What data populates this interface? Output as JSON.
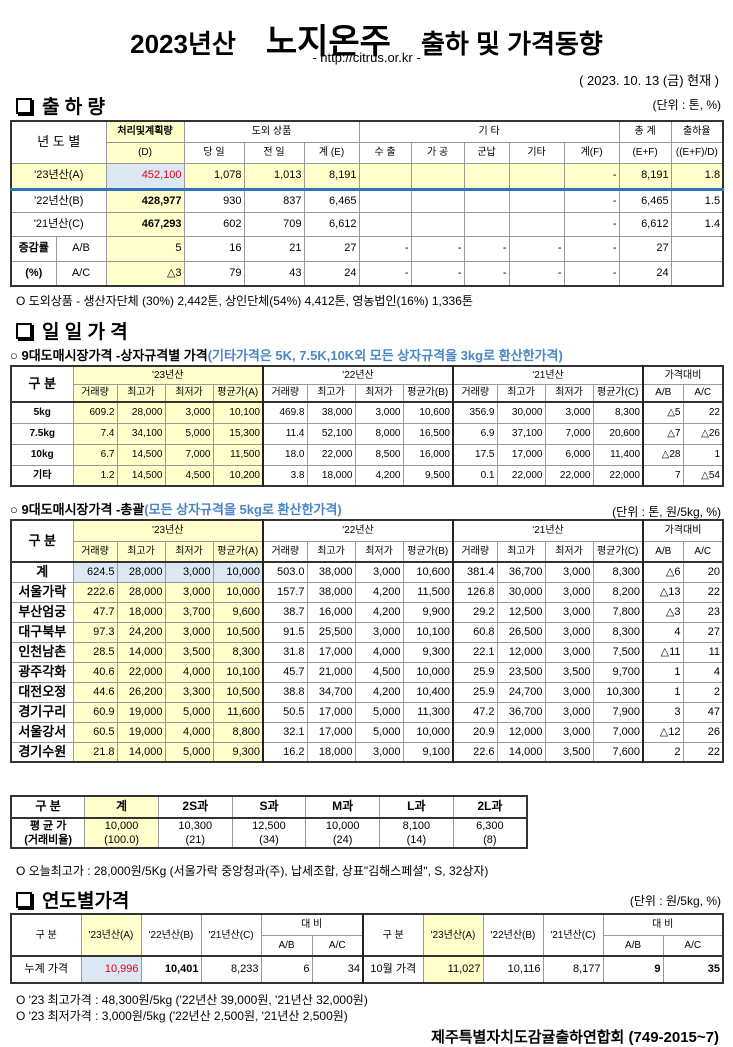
{
  "header": {
    "year": "2023년산",
    "product": "노지온주",
    "rest": "출하 및 가격동향",
    "url": "- http://citrus.or.kr -",
    "date": "( 2023.  10.  13 (금) 현재 )"
  },
  "shipment": {
    "title": "출 하 량",
    "unit": "(단위 : 톤, %)",
    "head": {
      "year": "년 도 별",
      "d1": "처리및계획량",
      "d2": "(D)",
      "outside": "도외 상품",
      "day": "당 일",
      "prev": "전 일",
      "sumE": "계 (E)",
      "other": "기          타",
      "export": "수 출",
      "process": "가 공",
      "military": "군납",
      "etc": "기타",
      "sumF": "계(F)",
      "total1": "총 계",
      "total2": "(E+F)",
      "rate1": "출하율",
      "rate2": "((E+F)/D)"
    },
    "rows": [
      [
        "'23년산(A)",
        "452,100",
        "1,078",
        "1,013",
        "8,191",
        "",
        "",
        "",
        "",
        "-",
        "8,191",
        "1.8"
      ],
      [
        "'22년산(B)",
        "428,977",
        "930",
        "837",
        "6,465",
        "",
        "",
        "",
        "",
        "-",
        "6,465",
        "1.5"
      ],
      [
        "'21년산(C)",
        "467,293",
        "602",
        "709",
        "6,612",
        "",
        "",
        "",
        "",
        "-",
        "6,612",
        "1.4"
      ]
    ],
    "change_label1": "증감률",
    "change_label2": "(%)",
    "change_rows": [
      [
        "A/B",
        "5",
        "16",
        "21",
        "27",
        "-",
        "-",
        "-",
        "-",
        "-",
        "27",
        ""
      ],
      [
        "A/C",
        "△3",
        "79",
        "43",
        "24",
        "-",
        "-",
        "-",
        "-",
        "-",
        "24",
        ""
      ]
    ],
    "note": "O 도외상품 - 생산자단체 (30%) 2,442톤, 상인단체(54%) 4,412톤, 영농법인(16%) 1,336톤"
  },
  "daily": {
    "title": "일 일 가 격",
    "box_sub": "○ 9대도매시장가격 -상자규격별 가격",
    "box_sub_note": "(기타가격은 5K, 7.5K,10K외 모든 상자규격을 3kg로 환산한가격)",
    "head": {
      "label": "구  분",
      "y23": "'23년산",
      "y22": "'22년산",
      "y21": "'21년산",
      "cmp": "가격대비",
      "vol": "거래량",
      "max": "최고가",
      "min": "최저가",
      "avgA": "평균가(A)",
      "avgB": "평균가(B)",
      "avgC": "평균가(C)",
      "ab": "A/B",
      "ac": "A/C"
    },
    "box_rows": [
      [
        "5kg",
        "609.2",
        "28,000",
        "3,000",
        "10,100",
        "469.8",
        "38,000",
        "3,000",
        "10,600",
        "356.9",
        "30,000",
        "3,000",
        "8,300",
        "△5",
        "22"
      ],
      [
        "7.5kg",
        "7.4",
        "34,100",
        "5,000",
        "15,300",
        "11.4",
        "52,100",
        "8,000",
        "16,500",
        "6.9",
        "37,100",
        "7,000",
        "20,600",
        "△7",
        "△26"
      ],
      [
        "10kg",
        "6.7",
        "14,500",
        "7,000",
        "11,500",
        "18.0",
        "22,000",
        "8,500",
        "16,000",
        "17.5",
        "17,000",
        "6,000",
        "11,400",
        "△28",
        "1"
      ],
      [
        "기타",
        "1.2",
        "14,500",
        "4,500",
        "10,200",
        "3.8",
        "18,000",
        "4,200",
        "9,500",
        "0.1",
        "22,000",
        "22,000",
        "22,000",
        "7",
        "△54"
      ]
    ],
    "market_sub": "○ 9대도매시장가격 -총괄",
    "market_sub_note": "(모든 상자규격을 5kg로 환산한가격)",
    "market_unit": "(단위 : 톤, 원/5kg, %)",
    "market_rows": [
      [
        "계",
        "624.5",
        "28,000",
        "3,000",
        "10,000",
        "503.0",
        "38,000",
        "3,000",
        "10,600",
        "381.4",
        "36,700",
        "3,000",
        "8,300",
        "△6",
        "20"
      ],
      [
        "서울가락",
        "222.6",
        "28,000",
        "3,000",
        "10,000",
        "157.7",
        "38,000",
        "4,200",
        "11,500",
        "126.8",
        "30,000",
        "3,000",
        "8,200",
        "△13",
        "22"
      ],
      [
        "부산엄궁",
        "47.7",
        "18,000",
        "3,700",
        "9,600",
        "38.7",
        "16,000",
        "4,200",
        "9,900",
        "29.2",
        "12,500",
        "3,000",
        "7,800",
        "△3",
        "23"
      ],
      [
        "대구북부",
        "97.3",
        "24,200",
        "3,000",
        "10,500",
        "91.5",
        "25,500",
        "3,000",
        "10,100",
        "60.8",
        "26,500",
        "3,000",
        "8,300",
        "4",
        "27"
      ],
      [
        "인천남촌",
        "28.5",
        "14,000",
        "3,500",
        "8,300",
        "31.8",
        "17,000",
        "4,000",
        "9,300",
        "22.1",
        "12,000",
        "3,000",
        "7,500",
        "△11",
        "11"
      ],
      [
        "광주각화",
        "40.6",
        "22,000",
        "4,000",
        "10,100",
        "45.7",
        "21,000",
        "4,500",
        "10,000",
        "25.9",
        "23,500",
        "3,500",
        "9,700",
        "1",
        "4"
      ],
      [
        "대전오정",
        "44.6",
        "26,200",
        "3,300",
        "10,500",
        "38.8",
        "34,700",
        "4,200",
        "10,400",
        "25.9",
        "24,700",
        "3,000",
        "10,300",
        "1",
        "2"
      ],
      [
        "경기구리",
        "60.9",
        "19,000",
        "5,000",
        "11,600",
        "50.5",
        "17,000",
        "5,000",
        "11,300",
        "47.2",
        "36,700",
        "3,000",
        "7,900",
        "3",
        "47"
      ],
      [
        "서울강서",
        "60.5",
        "19,000",
        "4,000",
        "8,800",
        "32.1",
        "17,000",
        "5,000",
        "10,000",
        "20.9",
        "12,000",
        "3,000",
        "7,000",
        "△12",
        "26"
      ],
      [
        "경기수원",
        "21.8",
        "14,000",
        "5,000",
        "9,300",
        "16.2",
        "18,000",
        "3,000",
        "9,100",
        "22.6",
        "14,000",
        "3,500",
        "7,600",
        "2",
        "22"
      ]
    ],
    "size": {
      "head": [
        "구  분",
        "계",
        "2S과",
        "S과",
        "M과",
        "L과",
        "2L과"
      ],
      "avg": [
        "평 균 가",
        "10,000",
        "10,300",
        "12,500",
        "10,000",
        "8,100",
        "6,300"
      ],
      "ratio": [
        "(거래비율)",
        "(100.0)",
        "(21)",
        "(34)",
        "(24)",
        "(14)",
        "(8)"
      ]
    },
    "today_high": "O 오늘최고가  : 28,000원/5Kg (서울가락 중앙청과(주),  납세조합, 상표\"김해스페셜\", S, 32상자)"
  },
  "yearly": {
    "title": "연도별가격",
    "unit": "(단위 : 원/5kg, %)",
    "head": {
      "label": "구     분",
      "a": "'23년산(A)",
      "b": "'22년산(B)",
      "c": "'21년산(C)",
      "cmp": "대     비",
      "ab": "A/B",
      "ac": "A/C"
    },
    "cum": [
      "누계 가격",
      "10,996",
      "10,401",
      "8,233",
      "6",
      "34"
    ],
    "month": [
      "10월 가격",
      "11,027",
      "10,116",
      "8,177",
      "9",
      "35"
    ],
    "note1": "O '23 최고가격 : 48,300원/5kg ('22년산 39,000원, '21년산 32,000원)",
    "note2": "O '23 최저가격 :   3,000원/5kg ('22년산  2,500원, '21년산  2,500원)"
  },
  "footer": "제주특별자치도감귤출하연합회 (749-2015~7)",
  "colors": {
    "yellow": "#ffffcc",
    "blue_cell": "#dbe8f3",
    "red": "#e0001b",
    "blue_text": "#4a86c5"
  }
}
